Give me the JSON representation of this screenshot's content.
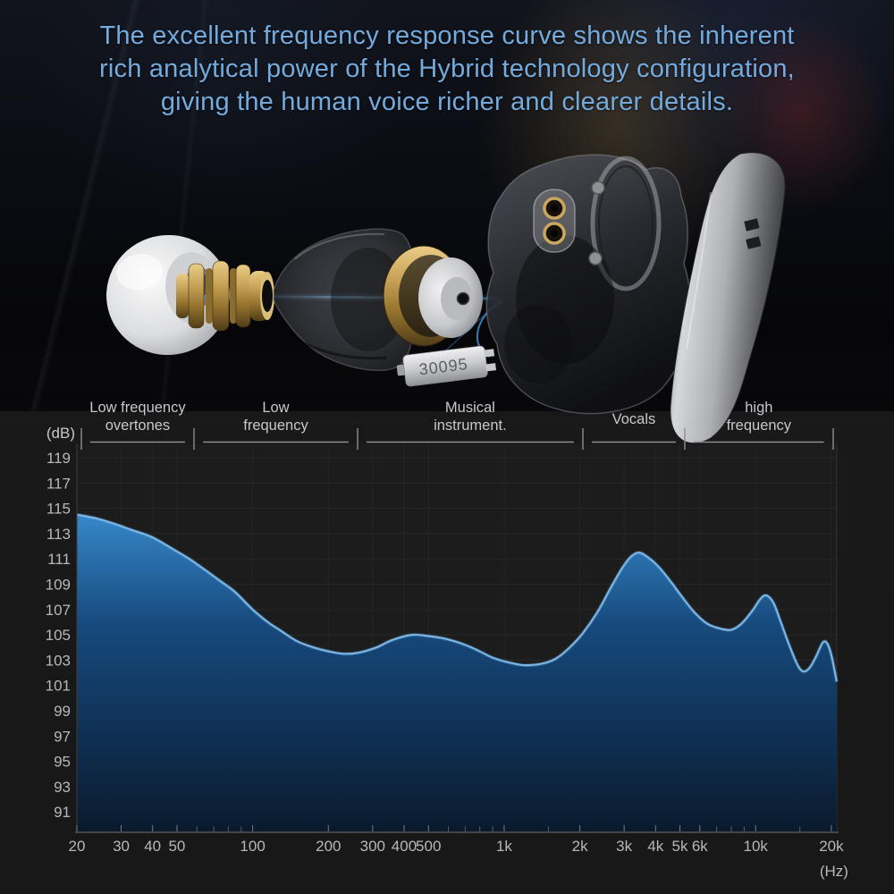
{
  "header": {
    "lines": [
      "The excellent frequency response curve shows the inherent",
      "rich analytical power of the Hybrid technology configuration,",
      "giving the human voice richer and clearer details."
    ],
    "text_color": "#74aadc"
  },
  "product": {
    "ba_driver_label": "30095"
  },
  "chart_data": {
    "type": "area",
    "title": "",
    "x_axis": {
      "scale": "log",
      "unit_label": "(Hz)",
      "min": 20,
      "max": 21000,
      "ticks": [
        {
          "f": 20,
          "label": "20"
        },
        {
          "f": 30,
          "label": "30"
        },
        {
          "f": 40,
          "label": "40"
        },
        {
          "f": 50,
          "label": "50"
        },
        {
          "f": 100,
          "label": "100"
        },
        {
          "f": 200,
          "label": "200"
        },
        {
          "f": 300,
          "label": "300"
        },
        {
          "f": 400,
          "label": "400"
        },
        {
          "f": 500,
          "label": "500"
        },
        {
          "f": 1000,
          "label": "1k"
        },
        {
          "f": 2000,
          "label": "2k"
        },
        {
          "f": 3000,
          "label": "3k"
        },
        {
          "f": 4000,
          "label": "4k"
        },
        {
          "f": 5000,
          "label": "5k"
        },
        {
          "f": 6000,
          "label": "6k"
        },
        {
          "f": 10000,
          "label": "10k"
        },
        {
          "f": 20000,
          "label": "20k"
        }
      ],
      "minor_ticks": [
        60,
        70,
        80,
        90,
        600,
        700,
        800,
        900,
        1500,
        7000,
        8000,
        9000,
        15000
      ]
    },
    "y_axis": {
      "unit_label": "(dB)",
      "ticks": [
        119,
        117,
        115,
        113,
        111,
        109,
        107,
        105,
        103,
        101,
        99,
        97,
        95,
        93,
        91
      ],
      "ylim": [
        91,
        119
      ]
    },
    "regions": [
      {
        "label": "Low frequency overtones",
        "lines": [
          "Low frequency",
          "overtones"
        ],
        "from": 20.8,
        "to": 58.5
      },
      {
        "label": "Low frequency",
        "lines": [
          "Low",
          "frequency"
        ],
        "from": 58.5,
        "to": 261
      },
      {
        "label": "Musical instrument.",
        "lines": [
          "Musical",
          "instrument."
        ],
        "from": 261,
        "to": 2056
      },
      {
        "label": "Vocals",
        "lines": [
          "Vocals"
        ],
        "from": 2056,
        "to": 5227
      },
      {
        "label": "high frequency",
        "lines": [
          "high",
          "frequency"
        ],
        "from": 5227,
        "to": 20300
      }
    ],
    "series": [
      {
        "name": "frequency-response",
        "points": [
          [
            20,
            114.5
          ],
          [
            24,
            114.2
          ],
          [
            28,
            113.8
          ],
          [
            33,
            113.3
          ],
          [
            40,
            112.7
          ],
          [
            48,
            111.8
          ],
          [
            56,
            111.0
          ],
          [
            65,
            110.1
          ],
          [
            75,
            109.2
          ],
          [
            85,
            108.4
          ],
          [
            100,
            107.0
          ],
          [
            115,
            106.0
          ],
          [
            130,
            105.3
          ],
          [
            150,
            104.5
          ],
          [
            175,
            104.0
          ],
          [
            200,
            103.7
          ],
          [
            230,
            103.5
          ],
          [
            265,
            103.6
          ],
          [
            310,
            104.0
          ],
          [
            360,
            104.6
          ],
          [
            430,
            105.0
          ],
          [
            500,
            104.9
          ],
          [
            580,
            104.7
          ],
          [
            680,
            104.3
          ],
          [
            780,
            103.8
          ],
          [
            900,
            103.2
          ],
          [
            1050,
            102.8
          ],
          [
            1200,
            102.6
          ],
          [
            1400,
            102.7
          ],
          [
            1600,
            103.1
          ],
          [
            1800,
            103.9
          ],
          [
            2050,
            105.1
          ],
          [
            2350,
            106.8
          ],
          [
            2650,
            108.7
          ],
          [
            2950,
            110.3
          ],
          [
            3200,
            111.2
          ],
          [
            3450,
            111.5
          ],
          [
            3750,
            111.1
          ],
          [
            4150,
            110.3
          ],
          [
            4600,
            109.2
          ],
          [
            5100,
            108.0
          ],
          [
            5700,
            106.8
          ],
          [
            6400,
            105.9
          ],
          [
            7200,
            105.5
          ],
          [
            8000,
            105.4
          ],
          [
            8800,
            105.9
          ],
          [
            9700,
            106.9
          ],
          [
            10500,
            107.9
          ],
          [
            11100,
            108.1
          ],
          [
            11800,
            107.5
          ],
          [
            12600,
            106.0
          ],
          [
            13600,
            104.2
          ],
          [
            14700,
            102.6
          ],
          [
            15500,
            102.1
          ],
          [
            16400,
            102.4
          ],
          [
            17400,
            103.3
          ],
          [
            18500,
            104.4
          ],
          [
            19300,
            104.3
          ],
          [
            20000,
            103.4
          ],
          [
            20600,
            102.2
          ],
          [
            21000,
            101.3
          ]
        ]
      }
    ],
    "colors": {
      "stroke": "#79b5e6",
      "fill_top": "#3a8fd2",
      "fill_mid": "#1a5globe",
      "fill_mid2": "#16497c",
      "fill_bottom": "#0a1a2c",
      "plot_bg": "#1c1c1d",
      "grid": "#28282a",
      "axis": "#55565a",
      "tick": "#7a7b7e",
      "label": "#b5b8bb",
      "region_label": "#c6c9cc",
      "region_line": "#8e8f93"
    }
  }
}
